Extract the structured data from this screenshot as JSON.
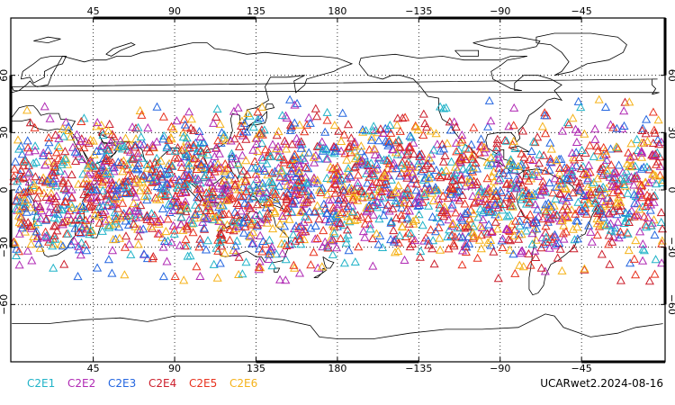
{
  "map": {
    "projection": "equirectangular",
    "lon_range": [
      -0.6,
      361.2
    ],
    "lat_range": [
      -90,
      90
    ],
    "coastlines": true,
    "grid": "dotted",
    "top_ticks": [
      {
        "lon": 45,
        "label": "45"
      },
      {
        "lon": 90,
        "label": "90"
      },
      {
        "lon": 135,
        "label": "135"
      },
      {
        "lon": 180,
        "label": "180"
      },
      {
        "lon": 225,
        "label": "−135"
      },
      {
        "lon": 270,
        "label": "−90"
      },
      {
        "lon": 315,
        "label": "−45"
      }
    ],
    "bottom_ticks": [
      {
        "lon": 45,
        "label": "45"
      },
      {
        "lon": 90,
        "label": "90"
      },
      {
        "lon": 135,
        "label": "135"
      },
      {
        "lon": 180,
        "label": "180"
      },
      {
        "lon": 225,
        "label": "−135"
      },
      {
        "lon": 270,
        "label": "−90"
      },
      {
        "lon": 315,
        "label": "−45"
      }
    ],
    "lat_ticks": [
      {
        "lat": 60,
        "label": "60"
      },
      {
        "lat": 30,
        "label": "30"
      },
      {
        "lat": 0,
        "label": "0"
      },
      {
        "lat": -30,
        "label": "−30"
      },
      {
        "lat": -60,
        "label": "−60"
      }
    ]
  },
  "legend": {
    "items": [
      {
        "label": "C2E1",
        "color": "#21b3c8"
      },
      {
        "label": "C2E2",
        "color": "#b02ab4"
      },
      {
        "label": "C2E3",
        "color": "#2466e0"
      },
      {
        "label": "C2E4",
        "color": "#cc1f2c"
      },
      {
        "label": "C2E5",
        "color": "#e8321e"
      },
      {
        "label": "C2E6",
        "color": "#f5b21a"
      }
    ]
  },
  "footer": {
    "dataset_label": "UCARwet2.2024-08-16"
  },
  "observations": {
    "marker": "triangle-open",
    "lat_extent": [
      -45,
      45
    ]
  }
}
